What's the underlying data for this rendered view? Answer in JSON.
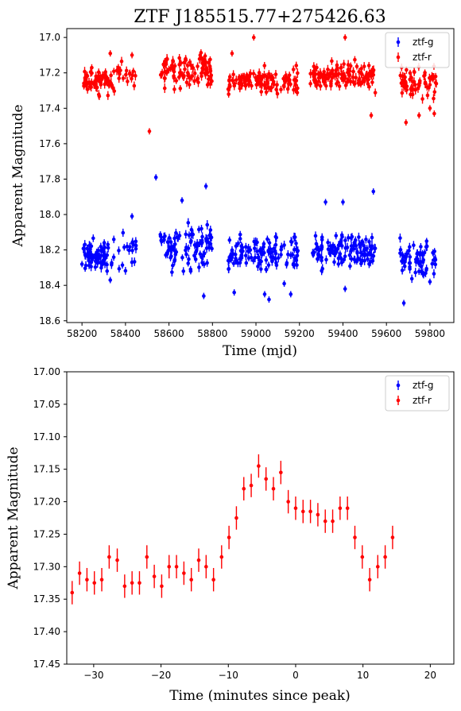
{
  "colors": {
    "g": "#0000ff",
    "r": "#ff0000"
  },
  "chart_data": [
    {
      "type": "scatter",
      "title": "ZTF J185515.77+275426.63",
      "xlabel": "Time (mjd)",
      "ylabel": "Apparent Magnitude",
      "xlim": [
        58130,
        59910
      ],
      "ylim": [
        18.61,
        16.95
      ],
      "y_inverted": true,
      "grid": false,
      "legend": "top-right",
      "xticks": [
        58200,
        58400,
        58600,
        58800,
        59000,
        59200,
        59400,
        59600,
        59800
      ],
      "yticks": [
        17.0,
        17.2,
        17.4,
        17.6,
        17.8,
        18.0,
        18.2,
        18.4,
        18.6
      ],
      "series": [
        {
          "name": "ztf-g",
          "color": "#0000ff",
          "segments": [
            {
              "x": [
                58200,
                58350
              ],
              "mean": 18.24,
              "spread": 0.08,
              "n": 70
            },
            {
              "x": [
                58360,
                58450
              ],
              "mean": 18.2,
              "spread": 0.1,
              "n": 18
            },
            {
              "x": [
                58560,
                58800
              ],
              "mean": 18.18,
              "spread": 0.1,
              "n": 90
            },
            {
              "x": [
                58870,
                59200
              ],
              "mean": 18.22,
              "spread": 0.08,
              "n": 110
            },
            {
              "x": [
                59250,
                59550
              ],
              "mean": 18.2,
              "spread": 0.08,
              "n": 120
            },
            {
              "x": [
                59660,
                59830
              ],
              "mean": 18.25,
              "spread": 0.1,
              "n": 60
            }
          ],
          "outliers": {
            "x": [
              58200,
              58330,
              58430,
              58540,
              58660,
              58700,
              58760,
              58770,
              58900,
              59000,
              59040,
              59060,
              59130,
              59160,
              59320,
              59400,
              59410,
              59540,
              59680,
              59800
            ],
            "y": [
              18.28,
              18.37,
              18.01,
              17.79,
              17.92,
              18.32,
              18.46,
              17.84,
              18.44,
              18.16,
              18.45,
              18.48,
              18.39,
              18.45,
              17.93,
              17.93,
              18.42,
              17.87,
              18.5,
              18.38
            ]
          }
        },
        {
          "name": "ztf-r",
          "color": "#ff0000",
          "segments": [
            {
              "x": [
                58200,
                58350
              ],
              "mean": 17.24,
              "spread": 0.06,
              "n": 70
            },
            {
              "x": [
                58360,
                58450
              ],
              "mean": 17.2,
              "spread": 0.07,
              "n": 18
            },
            {
              "x": [
                58560,
                58800
              ],
              "mean": 17.19,
              "spread": 0.09,
              "n": 100
            },
            {
              "x": [
                58870,
                59200
              ],
              "mean": 17.25,
              "spread": 0.06,
              "n": 110
            },
            {
              "x": [
                59250,
                59550
              ],
              "mean": 17.22,
              "spread": 0.07,
              "n": 120
            },
            {
              "x": [
                59660,
                59830
              ],
              "mean": 17.26,
              "spread": 0.07,
              "n": 60
            }
          ],
          "outliers": {
            "x": [
              58330,
              58430,
              58510,
              58890,
              58990,
              59410,
              59530,
              59690,
              59750,
              59800,
              59820
            ],
            "y": [
              17.09,
              17.1,
              17.53,
              17.09,
              17.0,
              17.0,
              17.44,
              17.48,
              17.44,
              17.4,
              17.43
            ]
          }
        }
      ]
    },
    {
      "type": "scatter",
      "title": "",
      "xlabel": "Time (minutes since peak)",
      "ylabel": "Apparent Magnitude",
      "xlim": [
        -34,
        23.5
      ],
      "ylim": [
        17.45,
        17.0
      ],
      "y_inverted": true,
      "grid": false,
      "legend": "top-right",
      "xticks": [
        -30,
        -20,
        -10,
        0,
        10,
        20
      ],
      "yticks": [
        17.0,
        17.05,
        17.1,
        17.15,
        17.2,
        17.25,
        17.3,
        17.35,
        17.4,
        17.45
      ],
      "series": [
        {
          "name": "ztf-g",
          "color": "#0000ff",
          "x": [],
          "y": []
        },
        {
          "name": "ztf-r",
          "color": "#ff0000",
          "err": 0.018,
          "x": [
            -33.2,
            -32.1,
            -31.0,
            -29.9,
            -28.8,
            -27.7,
            -26.5,
            -25.4,
            -24.3,
            -23.2,
            -22.1,
            -21.0,
            -19.9,
            -18.8,
            -17.7,
            -16.6,
            -15.5,
            -14.4,
            -13.3,
            -12.2,
            -11.0,
            -9.9,
            -8.8,
            -7.7,
            -6.6,
            -5.5,
            -4.4,
            -3.3,
            -2.2,
            -1.1,
            0.0,
            1.1,
            2.2,
            3.3,
            4.4,
            5.5,
            6.6,
            7.7,
            8.8,
            9.9,
            11.0,
            12.2,
            13.3,
            14.4
          ],
          "y": [
            17.34,
            17.31,
            17.32,
            17.325,
            17.32,
            17.285,
            17.29,
            17.33,
            17.325,
            17.325,
            17.285,
            17.315,
            17.33,
            17.3,
            17.3,
            17.31,
            17.32,
            17.29,
            17.3,
            17.32,
            17.285,
            17.255,
            17.225,
            17.18,
            17.175,
            17.145,
            17.165,
            17.18,
            17.155,
            17.2,
            17.21,
            17.215,
            17.215,
            17.22,
            17.23,
            17.23,
            17.21,
            17.21,
            17.255,
            17.285,
            17.32,
            17.3,
            17.285,
            17.255
          ]
        }
      ]
    }
  ]
}
